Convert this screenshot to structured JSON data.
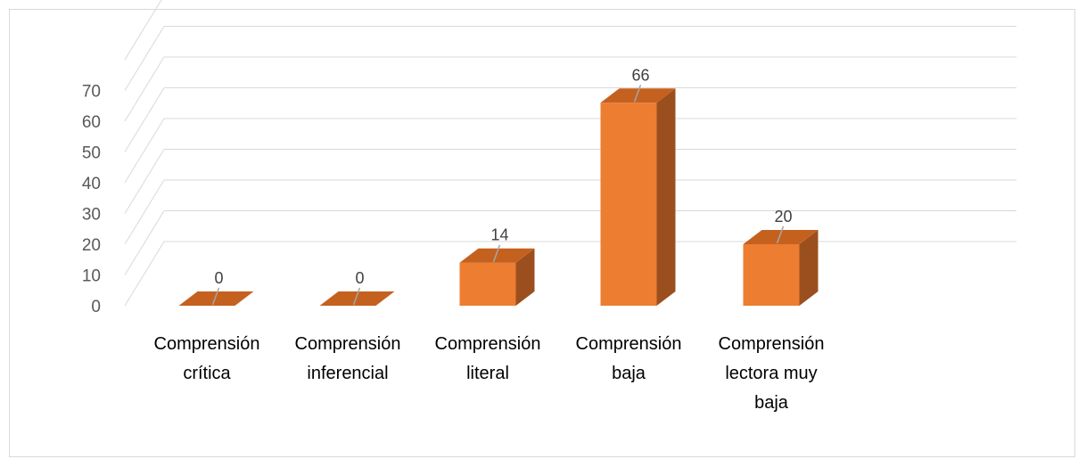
{
  "chart_data": {
    "type": "bar",
    "categories": [
      [
        "Comprensión",
        "crítica"
      ],
      [
        "Comprensión",
        "inferencial"
      ],
      [
        "Comprensión",
        "literal"
      ],
      [
        "Comprensión",
        "baja"
      ],
      [
        "Comprensión",
        "lectora muy",
        "baja"
      ]
    ],
    "values": [
      0,
      0,
      14,
      66,
      20
    ],
    "data_labels": [
      "0",
      "0",
      "14",
      "66",
      "20"
    ],
    "y_ticks": [
      0,
      10,
      20,
      30,
      40,
      50,
      60,
      70
    ],
    "ylim": [
      0,
      80
    ],
    "grid": true,
    "style": "3d-clustered-column",
    "colors": {
      "front": "#ED7D31",
      "side": "#9B4F1E",
      "top": "#C5611F",
      "grid": "#d9d9d9",
      "leader": "#a6a6a6"
    }
  }
}
